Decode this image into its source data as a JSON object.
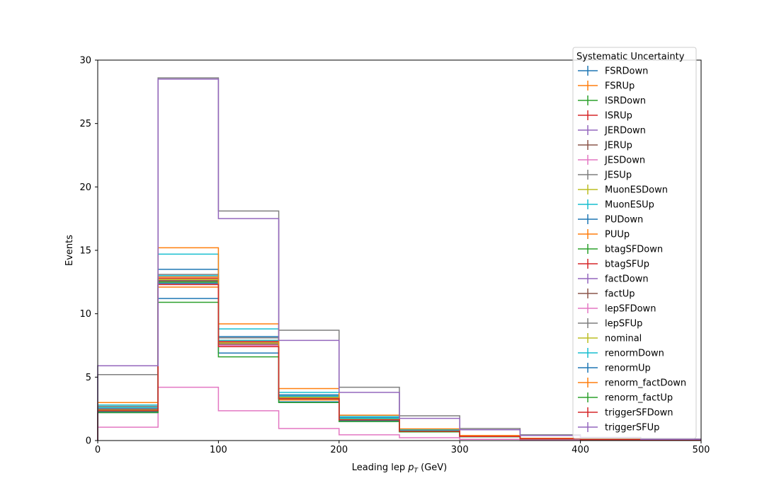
{
  "chart_data": {
    "type": "line",
    "drawstyle": "steps",
    "title": "",
    "xlabel_prefix": "Leading lep ",
    "xlabel_var": "p",
    "xlabel_sub": "T",
    "xlabel_suffix": " (GeV)",
    "ylabel": "Events",
    "xlim": [
      0,
      500
    ],
    "ylim": [
      0,
      30
    ],
    "xticks": [
      0,
      100,
      200,
      300,
      400,
      500
    ],
    "yticks": [
      0,
      5,
      10,
      15,
      20,
      25,
      30
    ],
    "grid": false,
    "legend": {
      "title": "Systematic Uncertainty",
      "placement": "upper right"
    },
    "bin_edges": [
      0,
      50,
      100,
      150,
      200,
      250,
      300,
      350,
      400,
      450,
      500
    ],
    "series": [
      {
        "name": "FSRDown",
        "color": "#1f77b4",
        "values": [
          2.3,
          12.4,
          7.6,
          3.3,
          1.6,
          0.75,
          0.32,
          0.15,
          0.09,
          0.05
        ]
      },
      {
        "name": "FSRUp",
        "color": "#ff7f0e",
        "values": [
          2.6,
          12.9,
          7.9,
          3.5,
          1.75,
          0.8,
          0.35,
          0.16,
          0.1,
          0.05
        ]
      },
      {
        "name": "ISRDown",
        "color": "#2ca02c",
        "values": [
          2.35,
          12.5,
          7.6,
          3.3,
          1.65,
          0.75,
          0.33,
          0.15,
          0.09,
          0.05
        ]
      },
      {
        "name": "ISRUp",
        "color": "#d62728",
        "values": [
          2.45,
          12.7,
          7.8,
          3.4,
          1.7,
          0.78,
          0.34,
          0.16,
          0.09,
          0.05
        ]
      },
      {
        "name": "JERDown",
        "color": "#9467bd",
        "values": [
          2.4,
          12.6,
          7.7,
          3.35,
          1.68,
          0.77,
          0.34,
          0.15,
          0.09,
          0.05
        ]
      },
      {
        "name": "JERUp",
        "color": "#8c564b",
        "values": [
          2.4,
          12.6,
          7.7,
          3.4,
          1.68,
          0.77,
          0.34,
          0.15,
          0.09,
          0.05
        ]
      },
      {
        "name": "JESDown",
        "color": "#e377c2",
        "values": [
          2.2,
          12.3,
          7.5,
          3.3,
          1.6,
          0.73,
          0.32,
          0.14,
          0.08,
          0.04
        ]
      },
      {
        "name": "JESUp",
        "color": "#7f7f7f",
        "values": [
          2.7,
          13.1,
          8.1,
          3.6,
          1.8,
          0.82,
          0.36,
          0.17,
          0.1,
          0.06
        ]
      },
      {
        "name": "MuonESDown",
        "color": "#bcbd22",
        "values": [
          2.4,
          12.7,
          7.7,
          3.4,
          1.7,
          0.77,
          0.34,
          0.15,
          0.09,
          0.05
        ]
      },
      {
        "name": "MuonESUp",
        "color": "#17becf",
        "values": [
          2.8,
          14.7,
          8.8,
          3.8,
          1.9,
          0.85,
          0.37,
          0.17,
          0.1,
          0.06
        ]
      },
      {
        "name": "PUDown",
        "color": "#1f77b4",
        "values": [
          2.5,
          13.5,
          8.2,
          3.6,
          1.8,
          0.8,
          0.35,
          0.16,
          0.1,
          0.05
        ]
      },
      {
        "name": "PUUp",
        "color": "#ff7f0e",
        "values": [
          2.3,
          12.1,
          7.4,
          3.2,
          1.6,
          0.73,
          0.32,
          0.14,
          0.08,
          0.04
        ]
      },
      {
        "name": "btagSFDown",
        "color": "#2ca02c",
        "values": [
          2.3,
          12.5,
          7.6,
          3.3,
          1.65,
          0.76,
          0.33,
          0.15,
          0.09,
          0.05
        ]
      },
      {
        "name": "btagSFUp",
        "color": "#d62728",
        "values": [
          2.45,
          12.8,
          7.8,
          3.4,
          1.7,
          0.78,
          0.34,
          0.16,
          0.09,
          0.05
        ]
      },
      {
        "name": "factDown",
        "color": "#9467bd",
        "values": [
          2.4,
          12.7,
          7.7,
          3.4,
          1.7,
          0.77,
          0.34,
          0.15,
          0.09,
          0.05
        ]
      },
      {
        "name": "factUp",
        "color": "#8c564b",
        "values": [
          2.4,
          12.6,
          7.6,
          3.35,
          1.68,
          0.76,
          0.33,
          0.15,
          0.09,
          0.05
        ]
      },
      {
        "name": "lepSFDown",
        "color": "#e377c2",
        "values": [
          1.05,
          4.2,
          2.35,
          0.95,
          0.45,
          0.22,
          0.1,
          0.05,
          0.03,
          0.02
        ]
      },
      {
        "name": "lepSFUp",
        "color": "#7f7f7f",
        "values": [
          5.2,
          28.6,
          18.1,
          8.7,
          4.2,
          1.95,
          0.95,
          0.45,
          0.25,
          0.12
        ]
      },
      {
        "name": "nominal",
        "color": "#bcbd22",
        "values": [
          2.4,
          12.7,
          7.7,
          3.4,
          1.7,
          0.77,
          0.34,
          0.15,
          0.09,
          0.05
        ]
      },
      {
        "name": "renormDown",
        "color": "#17becf",
        "values": [
          2.6,
          13.0,
          7.9,
          3.5,
          1.75,
          0.8,
          0.35,
          0.16,
          0.1,
          0.05
        ]
      },
      {
        "name": "renormUp",
        "color": "#1f77b4",
        "values": [
          2.25,
          11.2,
          6.9,
          3.05,
          1.55,
          0.7,
          0.31,
          0.14,
          0.08,
          0.04
        ]
      },
      {
        "name": "renorm_factDown",
        "color": "#ff7f0e",
        "values": [
          3.0,
          15.2,
          9.2,
          4.1,
          2.0,
          0.92,
          0.4,
          0.18,
          0.11,
          0.06
        ]
      },
      {
        "name": "renorm_factUp",
        "color": "#2ca02c",
        "values": [
          2.2,
          10.9,
          6.6,
          3.0,
          1.5,
          0.68,
          0.3,
          0.13,
          0.08,
          0.04
        ]
      },
      {
        "name": "triggerSFDown",
        "color": "#d62728",
        "values": [
          2.35,
          12.3,
          7.4,
          3.3,
          1.63,
          0.74,
          0.32,
          0.14,
          0.08,
          0.04
        ]
      },
      {
        "name": "triggerSFUp",
        "color": "#9467bd",
        "values": [
          5.9,
          28.5,
          17.5,
          7.9,
          3.8,
          1.75,
          0.85,
          0.4,
          0.22,
          0.1
        ]
      }
    ]
  }
}
